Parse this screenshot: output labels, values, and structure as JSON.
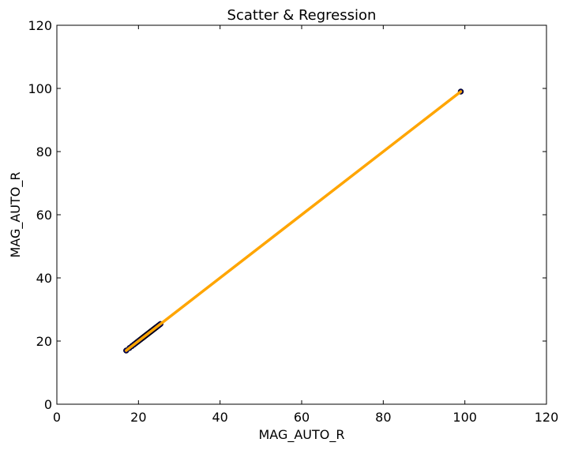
{
  "chart_data": {
    "type": "scatter",
    "title": "Scatter & Regression",
    "xlabel": "MAG_AUTO_R",
    "ylabel": "MAG_AUTO_R",
    "xlim": [
      0,
      120
    ],
    "ylim": [
      0,
      120
    ],
    "xticks": [
      0,
      20,
      40,
      60,
      80,
      100,
      120
    ],
    "yticks": [
      0,
      20,
      40,
      60,
      80,
      100,
      120
    ],
    "grid": false,
    "colors": {
      "points": "#00005a",
      "regression": "#ffa500"
    },
    "series": [
      {
        "kind": "points",
        "x": [
          17.0,
          17.8,
          18.4,
          18.9,
          19.3,
          19.7,
          20.0,
          20.3,
          20.6,
          20.9,
          21.1,
          21.3,
          21.5,
          21.7,
          21.9,
          22.1,
          22.3,
          22.5,
          22.7,
          22.9,
          23.1,
          23.3,
          23.5,
          23.7,
          23.9,
          24.1,
          24.3,
          24.5,
          24.8,
          25.1,
          25.4,
          99.0
        ],
        "y": [
          17.0,
          17.8,
          18.4,
          18.9,
          19.3,
          19.7,
          20.0,
          20.3,
          20.6,
          20.9,
          21.1,
          21.3,
          21.5,
          21.7,
          21.9,
          22.1,
          22.3,
          22.5,
          22.7,
          22.9,
          23.1,
          23.3,
          23.5,
          23.7,
          23.9,
          24.1,
          24.3,
          24.5,
          24.8,
          25.1,
          25.4,
          99.0
        ]
      },
      {
        "kind": "regression",
        "x": [
          17.0,
          99.0
        ],
        "y": [
          17.0,
          99.0
        ]
      }
    ]
  }
}
